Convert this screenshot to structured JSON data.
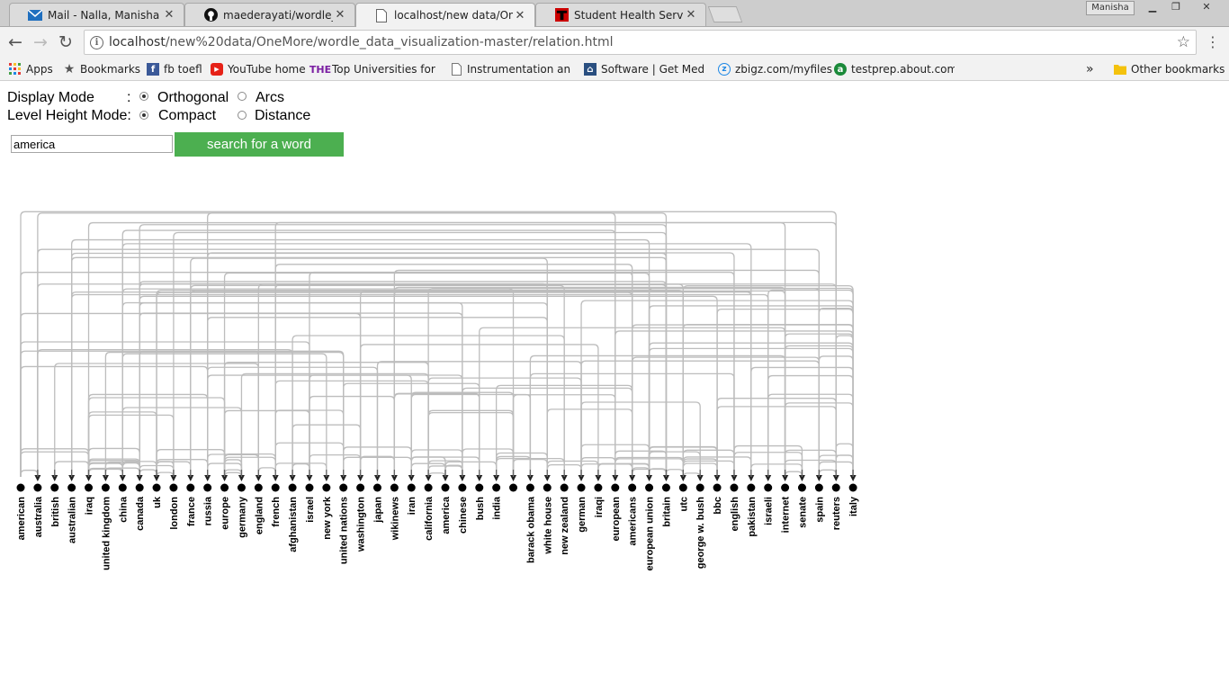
{
  "tabs": [
    {
      "title": "Mail - Nalla, Manisha Sid",
      "icon": "mail-icon"
    },
    {
      "title": "maederayati/wordle_data",
      "icon": "github-icon"
    },
    {
      "title": "localhost/new data/OneM",
      "icon": "page-icon"
    },
    {
      "title": "Student Health Services",
      "icon": "ttu-icon"
    }
  ],
  "profile_name": "Manisha",
  "address": {
    "host": "localhost",
    "path": "/new%20data/OneMore/wordle_data_visualization-master/relation.html"
  },
  "bookmarks": [
    {
      "label": "Apps",
      "icon": "apps-icon"
    },
    {
      "label": "Bookmarks",
      "icon": "star-icon"
    },
    {
      "label": "fb toefl",
      "icon": "facebook-icon"
    },
    {
      "label": "YouTube home",
      "icon": "youtube-icon"
    },
    {
      "label": "Top Universities for Er",
      "icon": "the-icon"
    },
    {
      "label": "Instrumentation and C",
      "icon": "page-icon"
    },
    {
      "label": "Software | Get MediaF",
      "icon": "software-icon"
    },
    {
      "label": "zbigz.com/myfiles",
      "icon": "zbigz-icon"
    },
    {
      "label": "testprep.about.com/c",
      "icon": "about-icon"
    }
  ],
  "other_bookmarks": "Other bookmarks",
  "controls": {
    "display_mode_label": "Display Mode",
    "display_colon": ":",
    "display_options": [
      "Orthogonal",
      "Arcs"
    ],
    "display_selected": "Orthogonal",
    "level_height_label": "Level Height Mode:",
    "level_options": [
      "Compact",
      "Distance"
    ],
    "level_selected": "Compact",
    "search_value": "america",
    "search_button": "search for a word"
  },
  "chart_data": {
    "type": "diagram",
    "description_type": "orthogonal arc diagram",
    "nodes": [
      "american",
      "australia",
      "british",
      "australian",
      "iraq",
      "united kingdom",
      "china",
      "canada",
      "uk",
      "london",
      "france",
      "russia",
      "europe",
      "germany",
      "england",
      "french",
      "afghanistan",
      "israel",
      "new york",
      "united nations",
      "washington",
      "japan",
      "wikinews",
      "iran",
      "california",
      "america",
      "chinese",
      "bush",
      "india",
      "",
      "barack obama",
      "white house",
      "new zealand",
      "german",
      "iraqi",
      "european",
      "americans",
      "european union",
      "britain",
      "utc",
      "george w. bush",
      "bbc",
      "english",
      "pakistan",
      "israeli",
      "internet",
      "senate",
      "spain",
      "reuters",
      "italy"
    ]
  }
}
